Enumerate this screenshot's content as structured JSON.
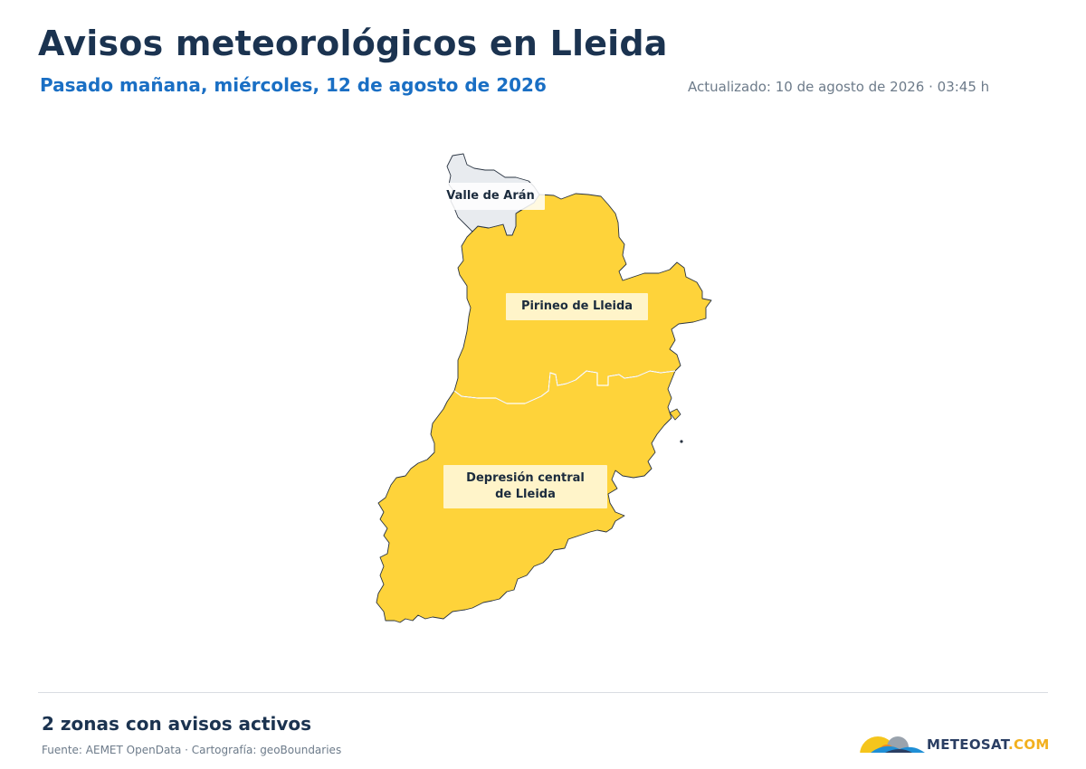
{
  "header": {
    "title": "Avisos meteorológicos en Lleida",
    "subtitle": "Pasado mañana, miércoles, 12 de agosto de 2026",
    "updated": "Actualizado: 10 de agosto de 2026 · 03:45 h"
  },
  "map": {
    "zones": [
      {
        "name": "Valle de Arán",
        "warning_level": "none",
        "color": "#e8ebef"
      },
      {
        "name": "Pirineo de Lleida",
        "warning_level": "yellow",
        "color": "#fed33a"
      },
      {
        "name": "Depresión central de Lleida",
        "warning_level": "yellow",
        "color": "#fed33a"
      }
    ],
    "border_color": "#2a3442"
  },
  "footer": {
    "active_zones": "2 zonas con avisos activos",
    "source": "Fuente: AEMET OpenData · Cartografía: geoBoundaries",
    "brand_part1": "METEOSAT",
    "brand_part2": ".COM"
  }
}
